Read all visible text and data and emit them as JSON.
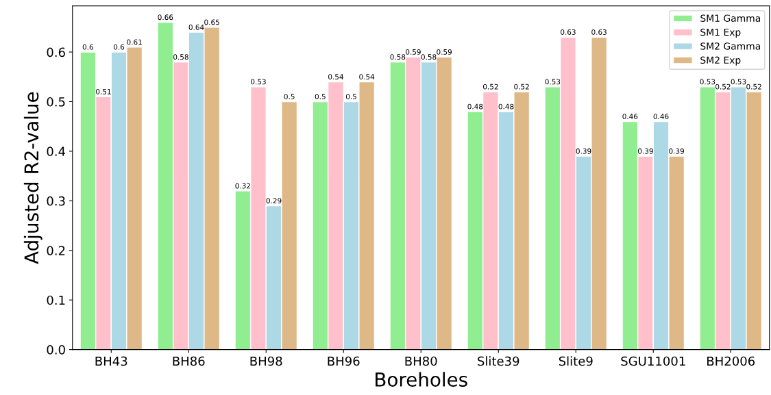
{
  "chart_data": {
    "type": "bar",
    "xlabel": "Boreholes",
    "ylabel": "Adjusted R2-value",
    "categories": [
      "BH43",
      "BH86",
      "BH98",
      "BH96",
      "BH80",
      "Slite39",
      "Slite9",
      "SGU11001",
      "BH2006"
    ],
    "series": [
      {
        "name": "SM1 Gamma",
        "color": "#90ee90",
        "values": [
          0.6,
          0.66,
          0.32,
          0.5,
          0.58,
          0.48,
          0.53,
          0.46,
          0.53
        ]
      },
      {
        "name": "SM1 Exp",
        "color": "#ffc0cb",
        "values": [
          0.51,
          0.58,
          0.53,
          0.54,
          0.59,
          0.52,
          0.63,
          0.39,
          0.52
        ]
      },
      {
        "name": "SM2 Gamma",
        "color": "#add8e6",
        "values": [
          0.6,
          0.64,
          0.29,
          0.5,
          0.58,
          0.48,
          0.39,
          0.46,
          0.53
        ]
      },
      {
        "name": "SM2 Exp",
        "color": "#deb887",
        "values": [
          0.61,
          0.65,
          0.5,
          0.54,
          0.59,
          0.52,
          0.63,
          0.39,
          0.52
        ]
      }
    ],
    "ylim": [
      0,
      0.693
    ],
    "yticks": [
      {
        "value": 0,
        "label": "0.0"
      },
      {
        "value": 0.1,
        "label": "0.1"
      },
      {
        "value": 0.2,
        "label": "0.2"
      },
      {
        "value": 0.3,
        "label": "0.3"
      },
      {
        "value": 0.4,
        "label": "0.4"
      },
      {
        "value": 0.5,
        "label": "0.5"
      },
      {
        "value": 0.6,
        "label": "0.6"
      }
    ],
    "data_labels": true,
    "legend": "top right",
    "grid": false
  }
}
